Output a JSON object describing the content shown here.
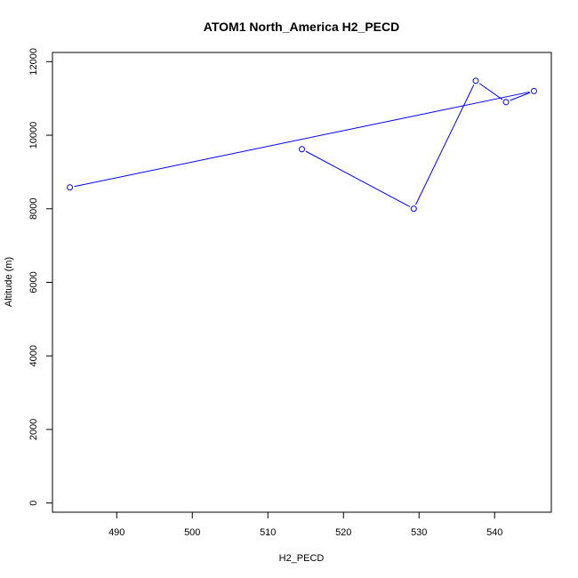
{
  "chart_data": {
    "type": "line",
    "title": "ATOM1 North_America H2_PECD",
    "xlabel": "H2_PECD",
    "ylabel": "Altitude (m)",
    "xlim": [
      481.5,
      547.5
    ],
    "ylim": [
      -250,
      12250
    ],
    "xticks": [
      490,
      500,
      510,
      520,
      530,
      540
    ],
    "yticks": [
      0,
      2000,
      4000,
      6000,
      8000,
      10000,
      12000
    ],
    "grid": false,
    "series": [
      {
        "color": "#0000ff",
        "marker": "open-circle",
        "points": [
          {
            "x": 514.5,
            "y": 9620
          },
          {
            "x": 529.3,
            "y": 8000
          },
          {
            "x": 537.5,
            "y": 11480
          },
          {
            "x": 541.5,
            "y": 10900
          },
          {
            "x": 545.2,
            "y": 11200
          },
          {
            "x": 483.8,
            "y": 8580
          }
        ]
      }
    ]
  }
}
